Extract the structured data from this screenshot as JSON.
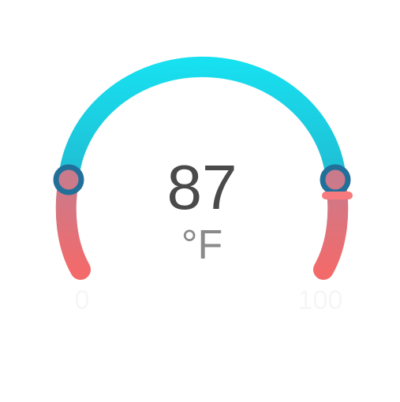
{
  "gauge": {
    "value": "87",
    "unit": "°F",
    "min_label": "0",
    "max_label": "100",
    "min": 0,
    "max": 100,
    "current": 87
  },
  "colors": {
    "arc_top": "#17e0f0",
    "arc_side": "#20bcd2",
    "warm_top": "#c97b8c",
    "warm_bottom": "#f36a6a",
    "handle": "#22709a",
    "marker": "#f77a7e",
    "value_text": "#4a4a4a",
    "unit_text": "#8a8a8a",
    "range_text": "#f6f6f6"
  }
}
